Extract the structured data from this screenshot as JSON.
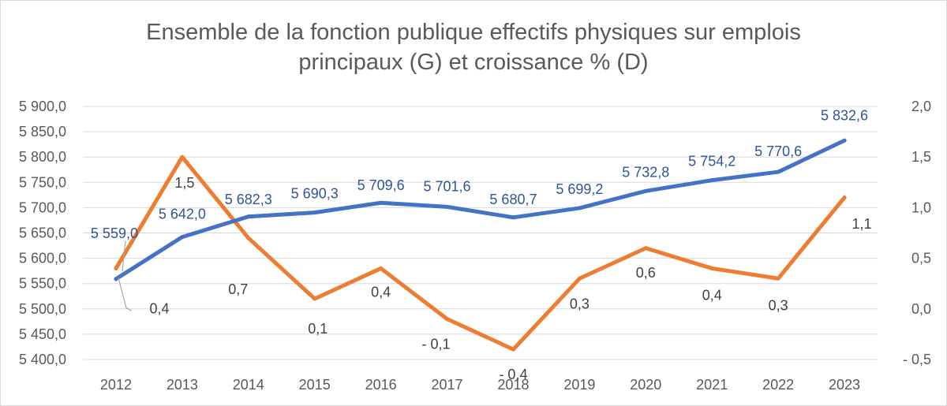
{
  "title": {
    "line1": "Ensemble de la fonction publique effectifs physiques sur emplois",
    "line2": "principaux (G) et croissance % (D)"
  },
  "colors": {
    "effectifs": "#4472c4",
    "croissance": "#ed7d31",
    "grid": "#d9d9d9",
    "text": "#595959"
  },
  "chart_data": {
    "type": "line",
    "title": "Ensemble de la fonction publique effectifs physiques sur emplois principaux (G) et croissance % (D)",
    "categories": [
      "2012",
      "2013",
      "2014",
      "2015",
      "2016",
      "2017",
      "2018",
      "2019",
      "2020",
      "2021",
      "2022",
      "2023"
    ],
    "series": [
      {
        "axis": "left",
        "color": "#4472c4",
        "values": [
          5559.0,
          5642.0,
          5682.3,
          5690.3,
          5709.6,
          5701.6,
          5680.7,
          5699.2,
          5732.8,
          5754.2,
          5770.6,
          5832.6
        ],
        "labels": [
          "5 559,0",
          "5 642,0",
          "5 682,3",
          "5 690,3",
          "5 709,6",
          "5 701,6",
          "5 680,7",
          "5 699,2",
          "5 732,8",
          "5 754,2",
          "5 770,6",
          "5 832,6"
        ]
      },
      {
        "axis": "right",
        "color": "#ed7d31",
        "values": [
          0.4,
          1.5,
          0.7,
          0.1,
          0.4,
          -0.1,
          -0.4,
          0.3,
          0.6,
          0.4,
          0.3,
          1.1
        ],
        "labels": [
          "0,4",
          "1,5",
          "0,7",
          "0,1",
          "0,4",
          "- 0,1",
          "- 0,4",
          "0,3",
          "0,6",
          "0,4",
          "0,3",
          "1,1"
        ]
      }
    ],
    "y_left": {
      "ylim": [
        5400,
        5900
      ],
      "ticks": [
        5400,
        5450,
        5500,
        5550,
        5600,
        5650,
        5700,
        5750,
        5800,
        5850,
        5900
      ],
      "tick_labels": [
        "5 400,0",
        "5 450,0",
        "5 500,0",
        "5 550,0",
        "5 600,0",
        "5 650,0",
        "5 700,0",
        "5 750,0",
        "5 800,0",
        "5 850,0",
        "5 900,0"
      ]
    },
    "y_right": {
      "ylim": [
        -0.5,
        2.0
      ],
      "ticks": [
        -0.5,
        0.0,
        0.5,
        1.0,
        1.5,
        2.0
      ],
      "tick_labels": [
        "- 0,5",
        "0,0",
        "0,5",
        "1,0",
        "1,5",
        "2,0"
      ]
    },
    "grid": true,
    "legend": false
  }
}
